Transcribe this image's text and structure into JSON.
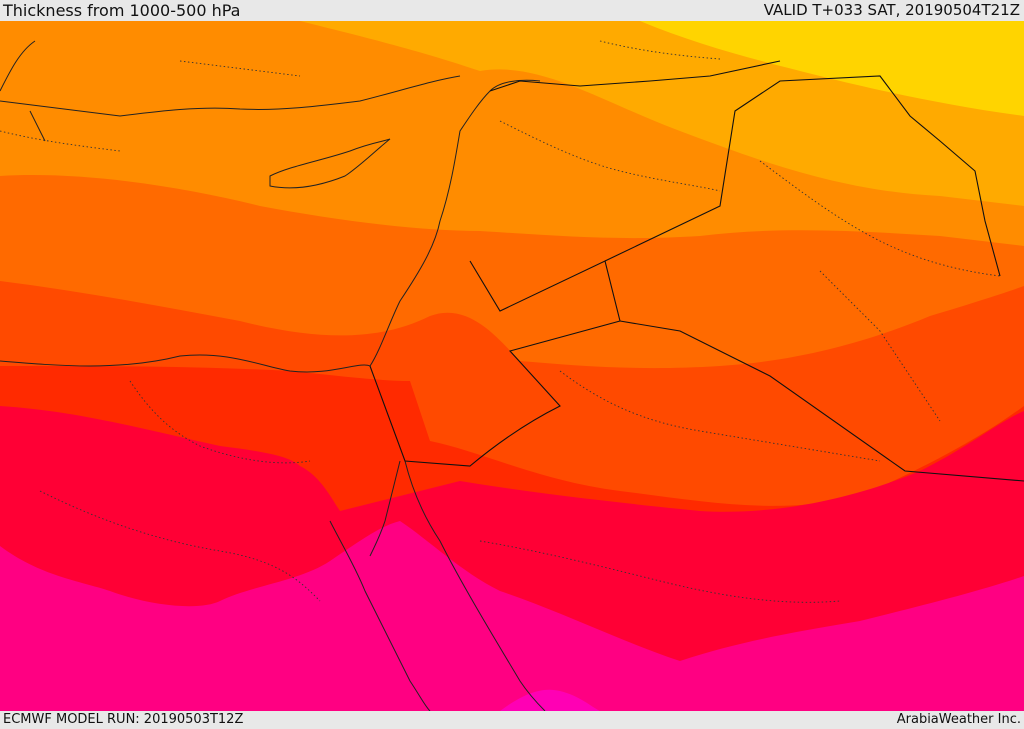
{
  "header": {
    "title": "Thickness from 1000-500 hPa",
    "valid": "VALID T+033 SAT, 20190504T21Z"
  },
  "footer": {
    "model_run": "ECMWF MODEL RUN: 20190503T12Z",
    "credit": "ArabiaWeather Inc."
  },
  "legend_colors": {
    "band_1": "#ffd400",
    "band_2": "#ffa800",
    "band_3": "#ff8c00",
    "band_4": "#ff6400",
    "band_5": "#ff4600",
    "band_6": "#ff2000",
    "band_7": "#ff0038",
    "band_8": "#ff0080",
    "band_9": "#ff10c8"
  }
}
